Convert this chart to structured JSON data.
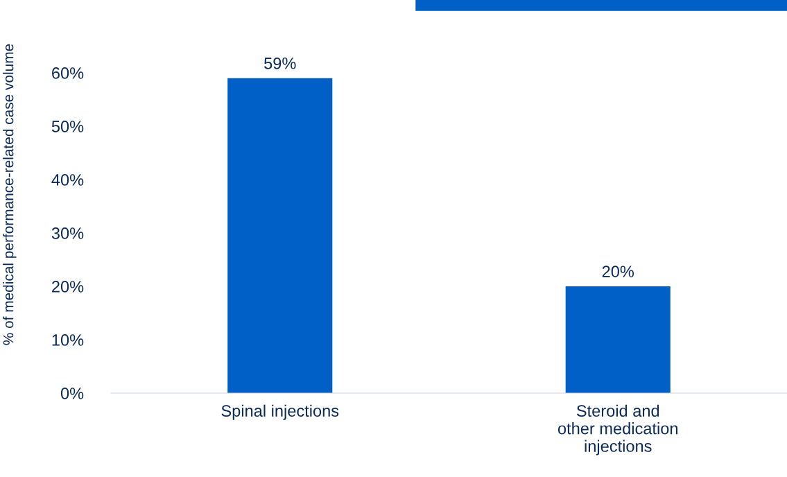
{
  "chart_data": {
    "type": "bar",
    "ylabel": "% of medical performance-related case volume",
    "categories": [
      "Spinal injections",
      "Steroid and\nother medication\ninjections"
    ],
    "values": [
      59,
      20
    ],
    "color": "#0060c8",
    "value_labels": [
      "59%",
      "20%"
    ],
    "ylim": [
      0,
      60
    ],
    "yticks": [
      {
        "value": 0,
        "label": "0%"
      },
      {
        "value": 10,
        "label": "10%"
      },
      {
        "value": 20,
        "label": "20%"
      },
      {
        "value": 30,
        "label": "30%"
      },
      {
        "value": 40,
        "label": "40%"
      },
      {
        "value": 50,
        "label": "50%"
      },
      {
        "value": 60,
        "label": "60%"
      }
    ],
    "grid": false,
    "legend": false
  }
}
